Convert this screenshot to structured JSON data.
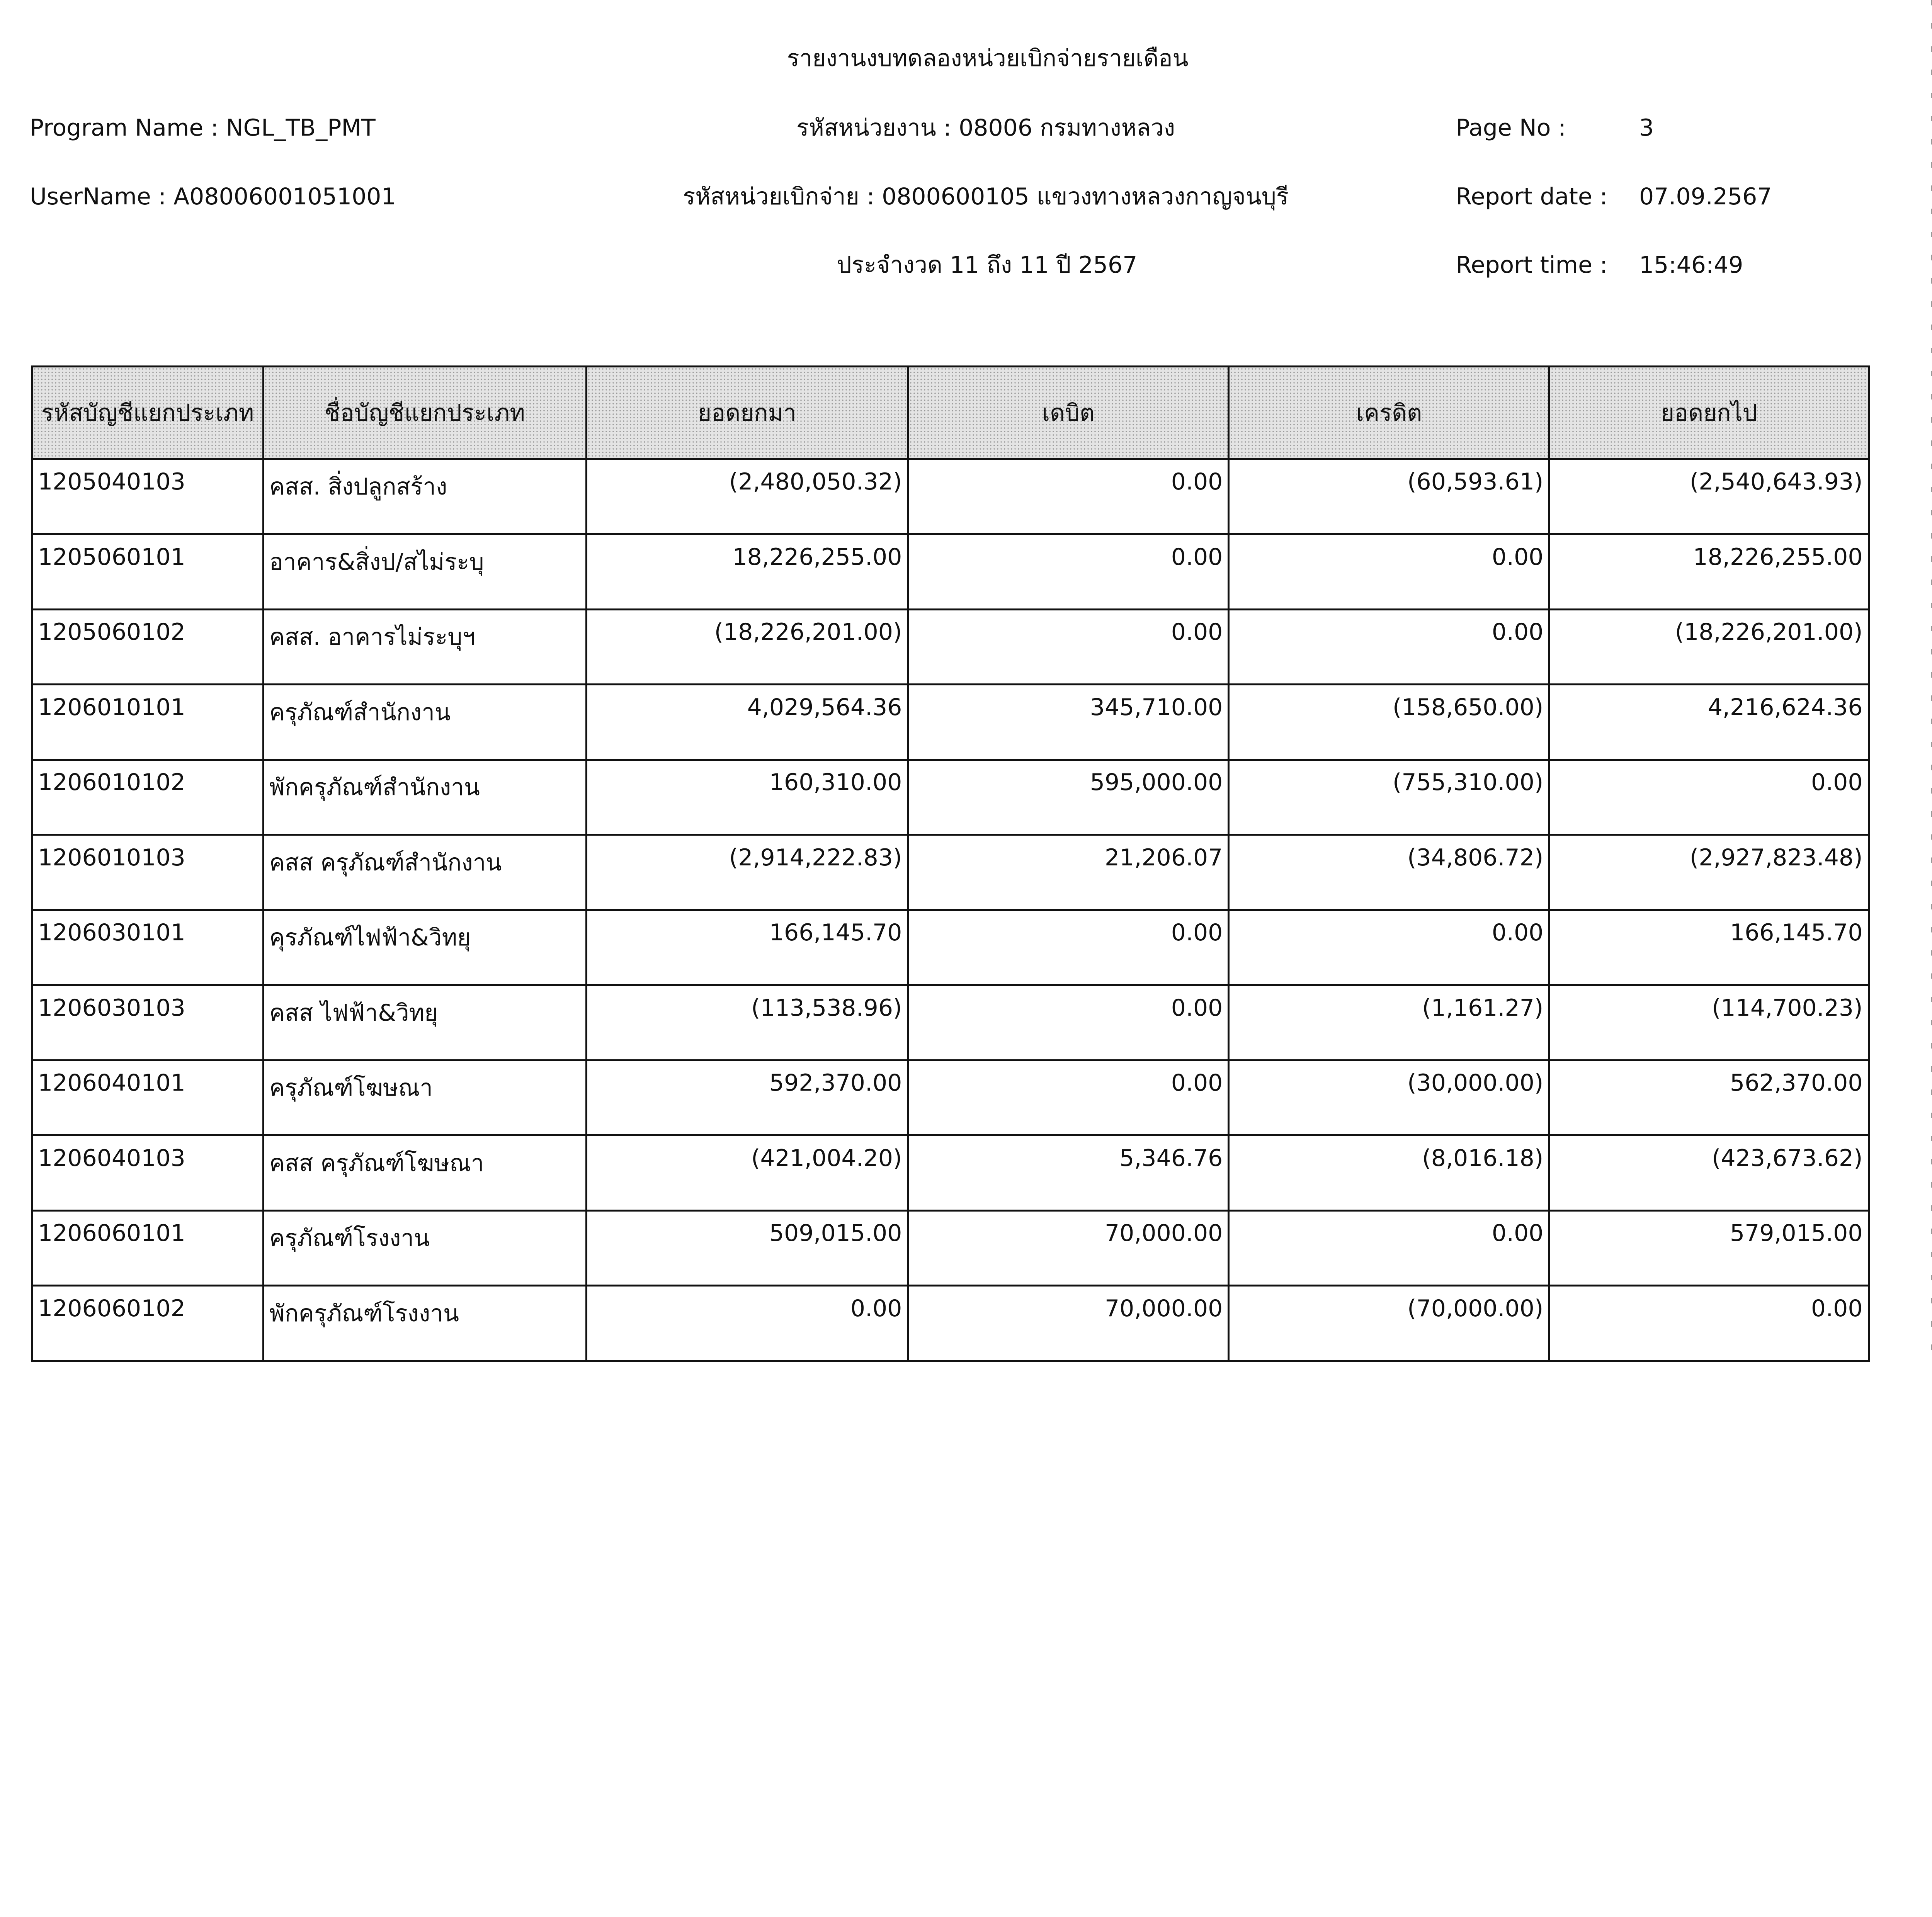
{
  "report": {
    "title": "รายงานงบทดลองหน่วยเบิกจ่ายรายเดือน",
    "program_name": "Program Name : NGL_TB_PMT",
    "user_name": "UserName : A08006001051001",
    "agency": "รหัสหน่วยงาน : 08006 กรมทางหลวง",
    "disbursing_unit": "รหัสหน่วยเบิกจ่าย : 0800600105 แขวงทางหลวงกาญจนบุรี",
    "period": "ประจำงวด 11 ถึง 11 ปี 2567",
    "page_no_label": "Page No :",
    "page_no": "3",
    "report_date_label": "Report date :",
    "report_date": "07.09.2567",
    "report_time_label": "Report time :",
    "report_time": "15:46:49"
  },
  "table": {
    "headers": [
      "รหัสบัญชีแยกประเภท",
      "ชื่อบัญชีแยกประเภท",
      "ยอดยกมา",
      "เดบิต",
      "เครดิต",
      "ยอดยกไป"
    ],
    "rows": [
      [
        "1205040103",
        "คสส. สิ่งปลูกสร้าง",
        "(2,480,050.32)",
        "0.00",
        "(60,593.61)",
        "(2,540,643.93)"
      ],
      [
        "1205060101",
        "อาคาร&สิ่งป/สไม่ระบุ",
        "18,226,255.00",
        "0.00",
        "0.00",
        "18,226,255.00"
      ],
      [
        "1205060102",
        "คสส. อาคารไม่ระบุฯ",
        "(18,226,201.00)",
        "0.00",
        "0.00",
        "(18,226,201.00)"
      ],
      [
        "1206010101",
        "ครุภัณฑ์สำนักงาน",
        "4,029,564.36",
        "345,710.00",
        "(158,650.00)",
        "4,216,624.36"
      ],
      [
        "1206010102",
        "พักครุภัณฑ์สำนักงาน",
        "160,310.00",
        "595,000.00",
        "(755,310.00)",
        "0.00"
      ],
      [
        "1206010103",
        "คสส ครุภัณฑ์สำนักงาน",
        "(2,914,222.83)",
        "21,206.07",
        "(34,806.72)",
        "(2,927,823.48)"
      ],
      [
        "1206030101",
        "คุรภัณฑ์ไฟฟ้า&วิทยุ",
        "166,145.70",
        "0.00",
        "0.00",
        "166,145.70"
      ],
      [
        "1206030103",
        "คสส ไฟฟ้า&วิทยุ",
        "(113,538.96)",
        "0.00",
        "(1,161.27)",
        "(114,700.23)"
      ],
      [
        "1206040101",
        "ครุภัณฑ์โฆษณา",
        "592,370.00",
        "0.00",
        "(30,000.00)",
        "562,370.00"
      ],
      [
        "1206040103",
        "คสส ครุภัณฑ์โฆษณา",
        "(421,004.20)",
        "5,346.76",
        "(8,016.18)",
        "(423,673.62)"
      ],
      [
        "1206060101",
        "ครุภัณฑ์โรงงาน",
        "509,015.00",
        "70,000.00",
        "0.00",
        "579,015.00"
      ],
      [
        "1206060102",
        "พักครุภัณฑ์โรงงาน",
        "0.00",
        "70,000.00",
        "(70,000.00)",
        "0.00"
      ]
    ]
  }
}
